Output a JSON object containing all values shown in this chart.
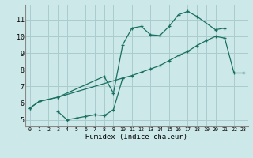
{
  "xlabel": "Humidex (Indice chaleur)",
  "bg_color": "#cce8e8",
  "line_color": "#1a7060",
  "grid_color": "#aacccc",
  "xlim": [
    -0.5,
    23.5
  ],
  "ylim": [
    4.6,
    11.9
  ],
  "xticks": [
    0,
    1,
    2,
    3,
    4,
    5,
    6,
    7,
    8,
    9,
    10,
    11,
    12,
    13,
    14,
    15,
    16,
    17,
    18,
    19,
    20,
    21,
    22,
    23
  ],
  "yticks": [
    5,
    6,
    7,
    8,
    9,
    10,
    11
  ],
  "curve1_x": [
    0,
    1,
    3,
    10,
    11,
    12,
    13,
    14,
    15,
    16,
    17,
    18,
    19,
    20,
    21,
    22,
    23
  ],
  "curve1_y": [
    5.7,
    6.1,
    6.35,
    7.5,
    7.65,
    7.85,
    8.05,
    8.25,
    8.55,
    8.85,
    9.1,
    9.45,
    9.75,
    10.0,
    9.9,
    7.8,
    7.8
  ],
  "curve2_x": [
    0,
    1,
    3,
    8,
    9,
    10,
    11,
    12,
    13,
    14,
    15,
    16,
    17,
    18,
    20,
    21
  ],
  "curve2_y": [
    5.7,
    6.1,
    6.35,
    7.6,
    6.6,
    9.5,
    10.5,
    10.6,
    10.1,
    10.05,
    10.6,
    11.3,
    11.5,
    11.2,
    10.4,
    10.5
  ],
  "curve3_x": [
    3,
    4,
    5,
    6,
    7,
    8,
    9,
    10
  ],
  "curve3_y": [
    5.5,
    5.0,
    5.1,
    5.2,
    5.3,
    5.25,
    5.6,
    7.5
  ]
}
